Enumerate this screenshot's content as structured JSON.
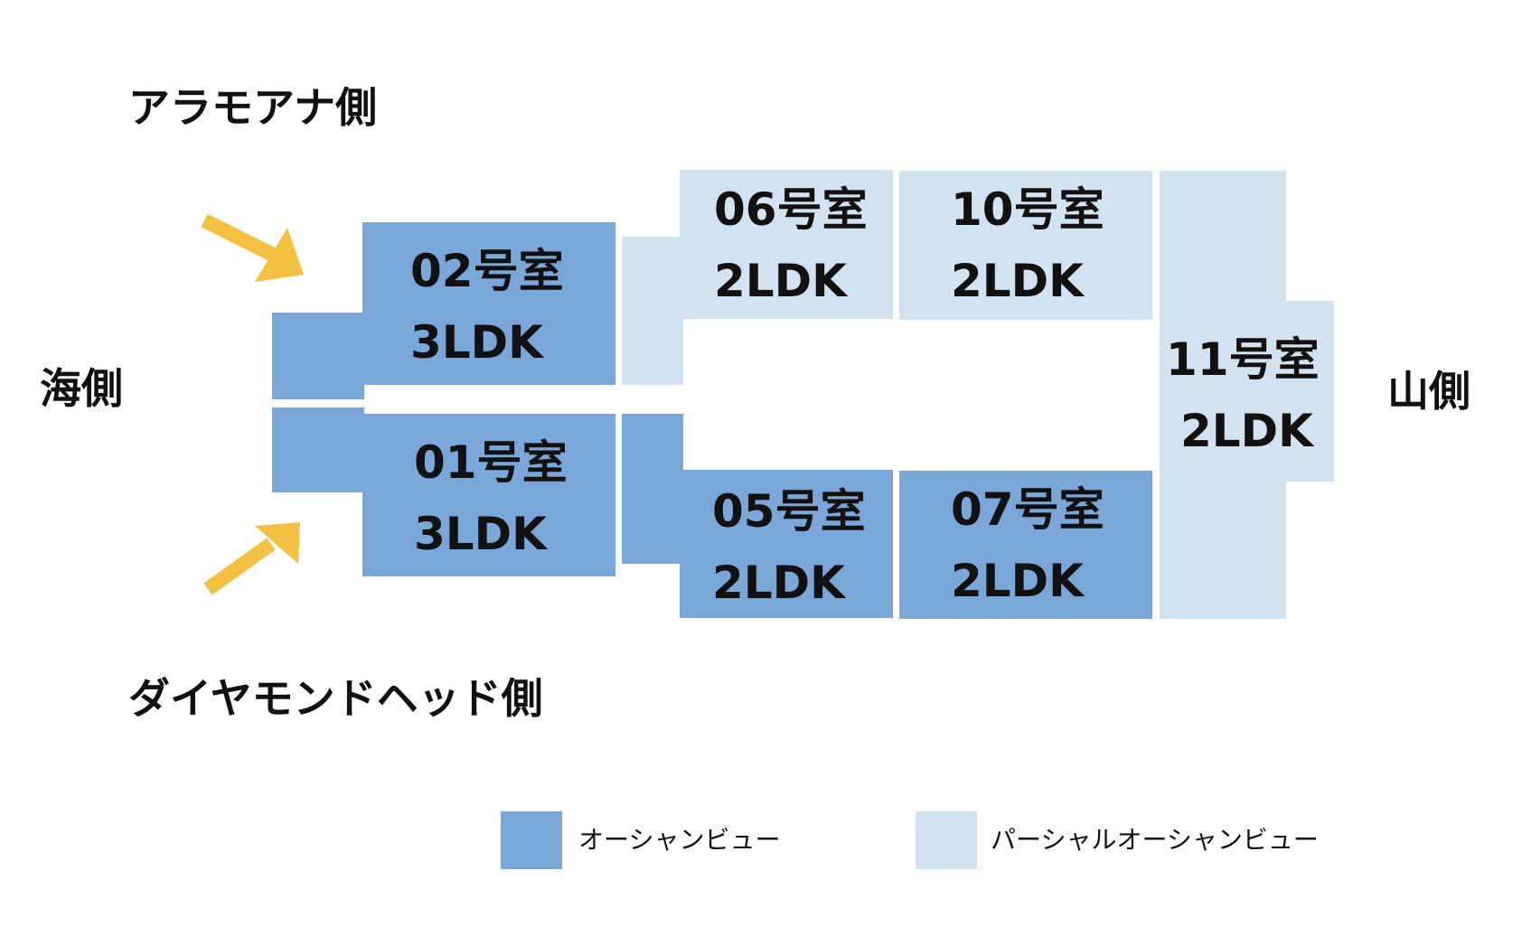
{
  "sides": {
    "top": "アラモアナ側",
    "bottom": "ダイヤモンドヘッド側",
    "left": "海側",
    "right": "山側"
  },
  "rooms": [
    {
      "id": "02",
      "number": "02号室",
      "layout": "3LDK",
      "view": "ocean"
    },
    {
      "id": "01",
      "number": "01号室",
      "layout": "3LDK",
      "view": "ocean"
    },
    {
      "id": "06",
      "number": "06号室",
      "layout": "2LDK",
      "view": "partial"
    },
    {
      "id": "10",
      "number": "10号室",
      "layout": "2LDK",
      "view": "partial"
    },
    {
      "id": "05",
      "number": "05号室",
      "layout": "2LDK",
      "view": "ocean"
    },
    {
      "id": "07",
      "number": "07号室",
      "layout": "2LDK",
      "view": "ocean"
    },
    {
      "id": "11",
      "number": "11号室",
      "layout": "2LDK",
      "view": "partial"
    }
  ],
  "legend": [
    {
      "label": "オーシャンビュー",
      "color": "#7ba7d8"
    },
    {
      "label": "パーシャルオーシャンビュー",
      "color": "#d3e2f1"
    }
  ],
  "colors": {
    "ocean_view": "#7ba7d8",
    "partial_ocean_view": "#d3e2f1",
    "arrow": "#f3c042"
  }
}
